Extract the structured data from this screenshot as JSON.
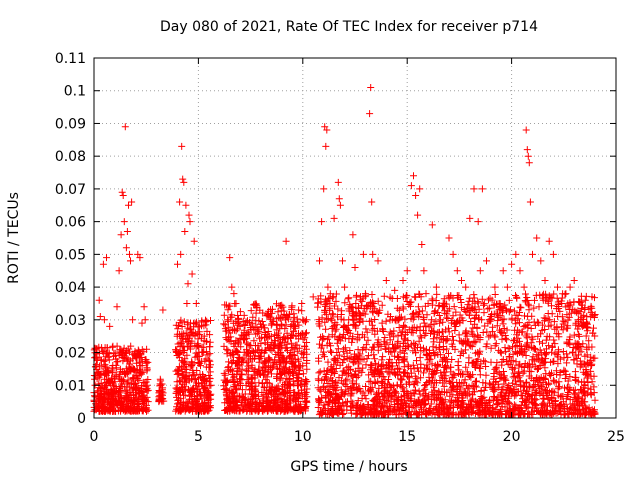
{
  "chart_data": {
    "type": "scatter",
    "title": "Day 080 of 2021, Rate Of TEC Index for receiver p714",
    "xlabel": "GPS time / hours",
    "ylabel": "ROTI / TECUs",
    "xlim": [
      0,
      25
    ],
    "ylim": [
      0,
      0.11
    ],
    "xticks": [
      0,
      5,
      10,
      15,
      20,
      25
    ],
    "xtick_labels": [
      "0",
      "5",
      "10",
      "15",
      "20",
      "25"
    ],
    "yticks": [
      0,
      0.01,
      0.02,
      0.03,
      0.04,
      0.05,
      0.06,
      0.07,
      0.08,
      0.09,
      0.1,
      0.11
    ],
    "ytick_labels": [
      "0",
      "0.01",
      "0.02",
      "0.03",
      "0.04",
      "0.05",
      "0.06",
      "0.07",
      "0.08",
      "0.09",
      "0.1",
      "0.11"
    ],
    "grid": true,
    "marker": "+",
    "color": "#ff0000",
    "series": [
      {
        "name": "ROTI",
        "x": [
          0.05,
          0.15,
          0.25,
          0.3,
          0.35,
          0.45,
          0.5,
          0.55,
          0.6,
          0.7,
          0.75,
          0.8,
          0.9,
          1.0,
          1.05,
          1.1,
          1.2,
          1.3,
          1.35,
          1.4,
          1.45,
          1.5,
          1.55,
          1.6,
          1.65,
          1.7,
          1.75,
          1.8,
          1.85,
          1.9,
          2.0,
          2.1,
          2.2,
          2.3,
          2.35,
          2.4,
          2.45,
          2.5,
          2.55,
          3.2,
          3.3,
          3.25,
          4.0,
          4.1,
          4.15,
          4.2,
          4.25,
          4.3,
          4.35,
          4.4,
          4.45,
          4.5,
          4.55,
          4.6,
          4.7,
          4.8,
          4.9,
          5.0,
          5.1,
          5.2,
          5.3,
          5.5,
          5.6,
          6.3,
          6.4,
          6.5,
          6.6,
          6.7,
          6.8,
          6.9,
          7.0,
          7.2,
          7.4,
          7.6,
          7.8,
          8.0,
          8.2,
          8.4,
          8.6,
          8.8,
          9.0,
          9.2,
          9.4,
          9.6,
          9.8,
          10.0,
          10.5,
          10.8,
          10.9,
          11.0,
          11.05,
          11.1,
          11.15,
          11.2,
          11.3,
          11.5,
          11.7,
          11.75,
          11.8,
          11.9,
          12.0,
          12.2,
          12.4,
          12.5,
          12.7,
          12.9,
          13.0,
          13.2,
          13.25,
          13.3,
          13.35,
          13.4,
          13.6,
          13.8,
          14.0,
          14.2,
          14.4,
          14.6,
          14.8,
          15.0,
          15.2,
          15.3,
          15.4,
          15.5,
          15.6,
          15.7,
          15.8,
          15.9,
          16.0,
          16.2,
          16.4,
          16.6,
          16.8,
          17.0,
          17.2,
          17.4,
          17.6,
          17.8,
          18.0,
          18.2,
          18.4,
          18.5,
          18.6,
          18.8,
          19.0,
          19.2,
          19.4,
          19.6,
          19.8,
          20.0,
          20.2,
          20.4,
          20.6,
          20.7,
          20.75,
          20.8,
          20.85,
          20.9,
          21.0,
          21.2,
          21.4,
          21.6,
          21.8,
          22.0,
          22.2,
          22.4,
          22.6,
          22.8,
          23.0,
          23.2,
          23.4,
          23.6,
          23.8
        ],
        "y": [
          0.01,
          0.012,
          0.036,
          0.031,
          0.009,
          0.047,
          0.03,
          0.015,
          0.049,
          0.011,
          0.028,
          0.008,
          0.014,
          0.012,
          0.018,
          0.034,
          0.045,
          0.056,
          0.069,
          0.068,
          0.06,
          0.089,
          0.052,
          0.057,
          0.065,
          0.05,
          0.048,
          0.066,
          0.03,
          0.012,
          0.009,
          0.05,
          0.049,
          0.029,
          0.008,
          0.034,
          0.03,
          0.011,
          0.01,
          0.01,
          0.033,
          0.008,
          0.047,
          0.066,
          0.05,
          0.083,
          0.073,
          0.072,
          0.057,
          0.065,
          0.035,
          0.041,
          0.062,
          0.06,
          0.044,
          0.054,
          0.035,
          0.012,
          0.016,
          0.02,
          0.009,
          0.013,
          0.01,
          0.011,
          0.03,
          0.049,
          0.04,
          0.038,
          0.035,
          0.02,
          0.012,
          0.024,
          0.015,
          0.018,
          0.014,
          0.02,
          0.023,
          0.018,
          0.022,
          0.015,
          0.019,
          0.054,
          0.02,
          0.028,
          0.033,
          0.03,
          0.037,
          0.048,
          0.06,
          0.07,
          0.089,
          0.083,
          0.088,
          0.04,
          0.035,
          0.061,
          0.072,
          0.067,
          0.065,
          0.048,
          0.04,
          0.03,
          0.056,
          0.046,
          0.03,
          0.05,
          0.038,
          0.093,
          0.101,
          0.066,
          0.05,
          0.035,
          0.048,
          0.029,
          0.042,
          0.031,
          0.039,
          0.03,
          0.042,
          0.045,
          0.071,
          0.074,
          0.068,
          0.062,
          0.07,
          0.053,
          0.045,
          0.038,
          0.035,
          0.059,
          0.04,
          0.03,
          0.032,
          0.055,
          0.05,
          0.045,
          0.042,
          0.04,
          0.061,
          0.07,
          0.06,
          0.045,
          0.07,
          0.048,
          0.03,
          0.04,
          0.035,
          0.045,
          0.04,
          0.047,
          0.05,
          0.045,
          0.04,
          0.088,
          0.082,
          0.08,
          0.078,
          0.066,
          0.05,
          0.055,
          0.048,
          0.042,
          0.054,
          0.05,
          0.04,
          0.035,
          0.038,
          0.04,
          0.042,
          0.03,
          0.028,
          0.021,
          0.016
        ],
        "density": [
          {
            "range": [
              0.0,
              2.6
            ],
            "low": 0.002,
            "high": 0.022,
            "n": 520
          },
          {
            "range": [
              3.1,
              3.35
            ],
            "low": 0.005,
            "high": 0.012,
            "n": 30
          },
          {
            "range": [
              3.9,
              5.6
            ],
            "low": 0.002,
            "high": 0.03,
            "n": 380
          },
          {
            "range": [
              6.2,
              10.2
            ],
            "low": 0.002,
            "high": 0.035,
            "n": 900
          },
          {
            "range": [
              10.7,
              24.0
            ],
            "low": 0.001,
            "high": 0.038,
            "n": 2400
          }
        ]
      }
    ]
  }
}
